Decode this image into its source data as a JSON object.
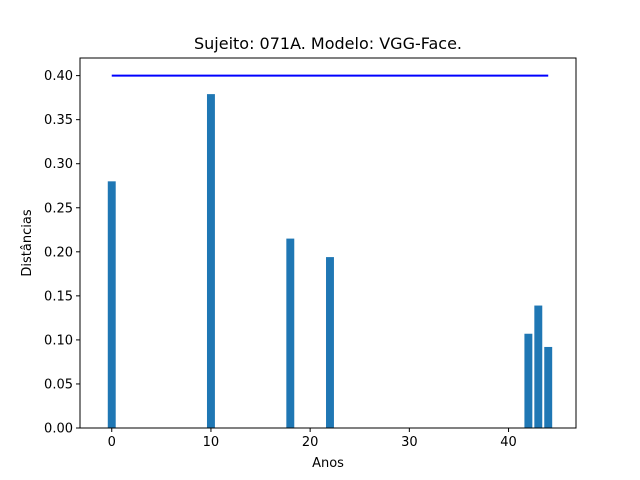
{
  "chart_data": {
    "type": "bar",
    "title": "Sujeito: 071A. Modelo: VGG-Face.",
    "xlabel": "Anos",
    "ylabel": "Distâncias",
    "xlim": [
      -3.2,
      46.8
    ],
    "ylim": [
      0,
      0.42
    ],
    "x_ticks": [
      0,
      10,
      20,
      30,
      40
    ],
    "y_ticks": [
      0.0,
      0.05,
      0.1,
      0.15,
      0.2,
      0.25,
      0.3,
      0.35,
      0.4
    ],
    "bar_width": 0.8,
    "bar_color": "#1f77b4",
    "x": [
      0,
      10,
      18,
      22,
      42,
      43,
      44
    ],
    "values": [
      0.28,
      0.379,
      0.215,
      0.194,
      0.107,
      0.139,
      0.092
    ],
    "threshold_line": {
      "x": [
        0,
        44
      ],
      "y": 0.4,
      "color": "#0000ff"
    },
    "grid": false,
    "legend": "none"
  }
}
